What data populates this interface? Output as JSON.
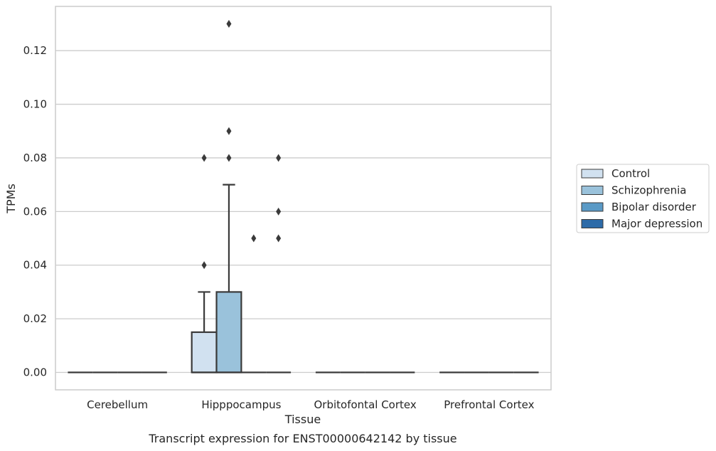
{
  "chart_data": {
    "type": "box",
    "title": "Transcript expression for ENST00000642142 by tissue",
    "xlabel": "Tissue",
    "ylabel": "TPMs",
    "ylim": [
      -0.0065,
      0.1365
    ],
    "yticks": [
      "0.00",
      "0.02",
      "0.04",
      "0.06",
      "0.08",
      "0.10",
      "0.12"
    ],
    "grid": true,
    "legend_position": "right",
    "categories": [
      "Cerebellum",
      "Hipppocampus",
      "Orbitofontal Cortex",
      "Prefrontal Cortex"
    ],
    "series": [
      {
        "name": "Control",
        "color": "#d1e1f0",
        "boxes": [
          {
            "q1": 0,
            "median": 0,
            "q3": 0,
            "whisker_low": 0,
            "whisker_high": 0,
            "outliers": []
          },
          {
            "q1": 0,
            "median": 0,
            "q3": 0.015,
            "whisker_low": 0,
            "whisker_high": 0.03,
            "outliers": [
              0.04,
              0.08
            ]
          },
          {
            "q1": 0,
            "median": 0,
            "q3": 0,
            "whisker_low": 0,
            "whisker_high": 0,
            "outliers": []
          },
          {
            "q1": 0,
            "median": 0,
            "q3": 0,
            "whisker_low": 0,
            "whisker_high": 0,
            "outliers": []
          }
        ]
      },
      {
        "name": "Schizophrenia",
        "color": "#9ac2db",
        "boxes": [
          {
            "q1": 0,
            "median": 0,
            "q3": 0,
            "whisker_low": 0,
            "whisker_high": 0,
            "outliers": []
          },
          {
            "q1": 0,
            "median": 0,
            "q3": 0.03,
            "whisker_low": 0,
            "whisker_high": 0.07,
            "outliers": [
              0.08,
              0.09,
              0.13
            ]
          },
          {
            "q1": 0,
            "median": 0,
            "q3": 0,
            "whisker_low": 0,
            "whisker_high": 0,
            "outliers": []
          },
          {
            "q1": 0,
            "median": 0,
            "q3": 0,
            "whisker_low": 0,
            "whisker_high": 0,
            "outliers": []
          }
        ]
      },
      {
        "name": "Bipolar disorder",
        "color": "#5a9ac6",
        "boxes": [
          {
            "q1": 0,
            "median": 0,
            "q3": 0,
            "whisker_low": 0,
            "whisker_high": 0,
            "outliers": []
          },
          {
            "q1": 0,
            "median": 0,
            "q3": 0,
            "whisker_low": 0,
            "whisker_high": 0,
            "outliers": [
              0.05
            ]
          },
          {
            "q1": 0,
            "median": 0,
            "q3": 0,
            "whisker_low": 0,
            "whisker_high": 0,
            "outliers": []
          },
          {
            "q1": 0,
            "median": 0,
            "q3": 0,
            "whisker_low": 0,
            "whisker_high": 0,
            "outliers": []
          }
        ]
      },
      {
        "name": "Major depression",
        "color": "#2d6ba8",
        "boxes": [
          {
            "q1": 0,
            "median": 0,
            "q3": 0,
            "whisker_low": 0,
            "whisker_high": 0,
            "outliers": []
          },
          {
            "q1": 0,
            "median": 0,
            "q3": 0,
            "whisker_low": 0,
            "whisker_high": 0,
            "outliers": [
              0.05,
              0.06,
              0.08
            ]
          },
          {
            "q1": 0,
            "median": 0,
            "q3": 0,
            "whisker_low": 0,
            "whisker_high": 0,
            "outliers": []
          },
          {
            "q1": 0,
            "median": 0,
            "q3": 0,
            "whisker_low": 0,
            "whisker_high": 0,
            "outliers": []
          }
        ]
      }
    ]
  }
}
